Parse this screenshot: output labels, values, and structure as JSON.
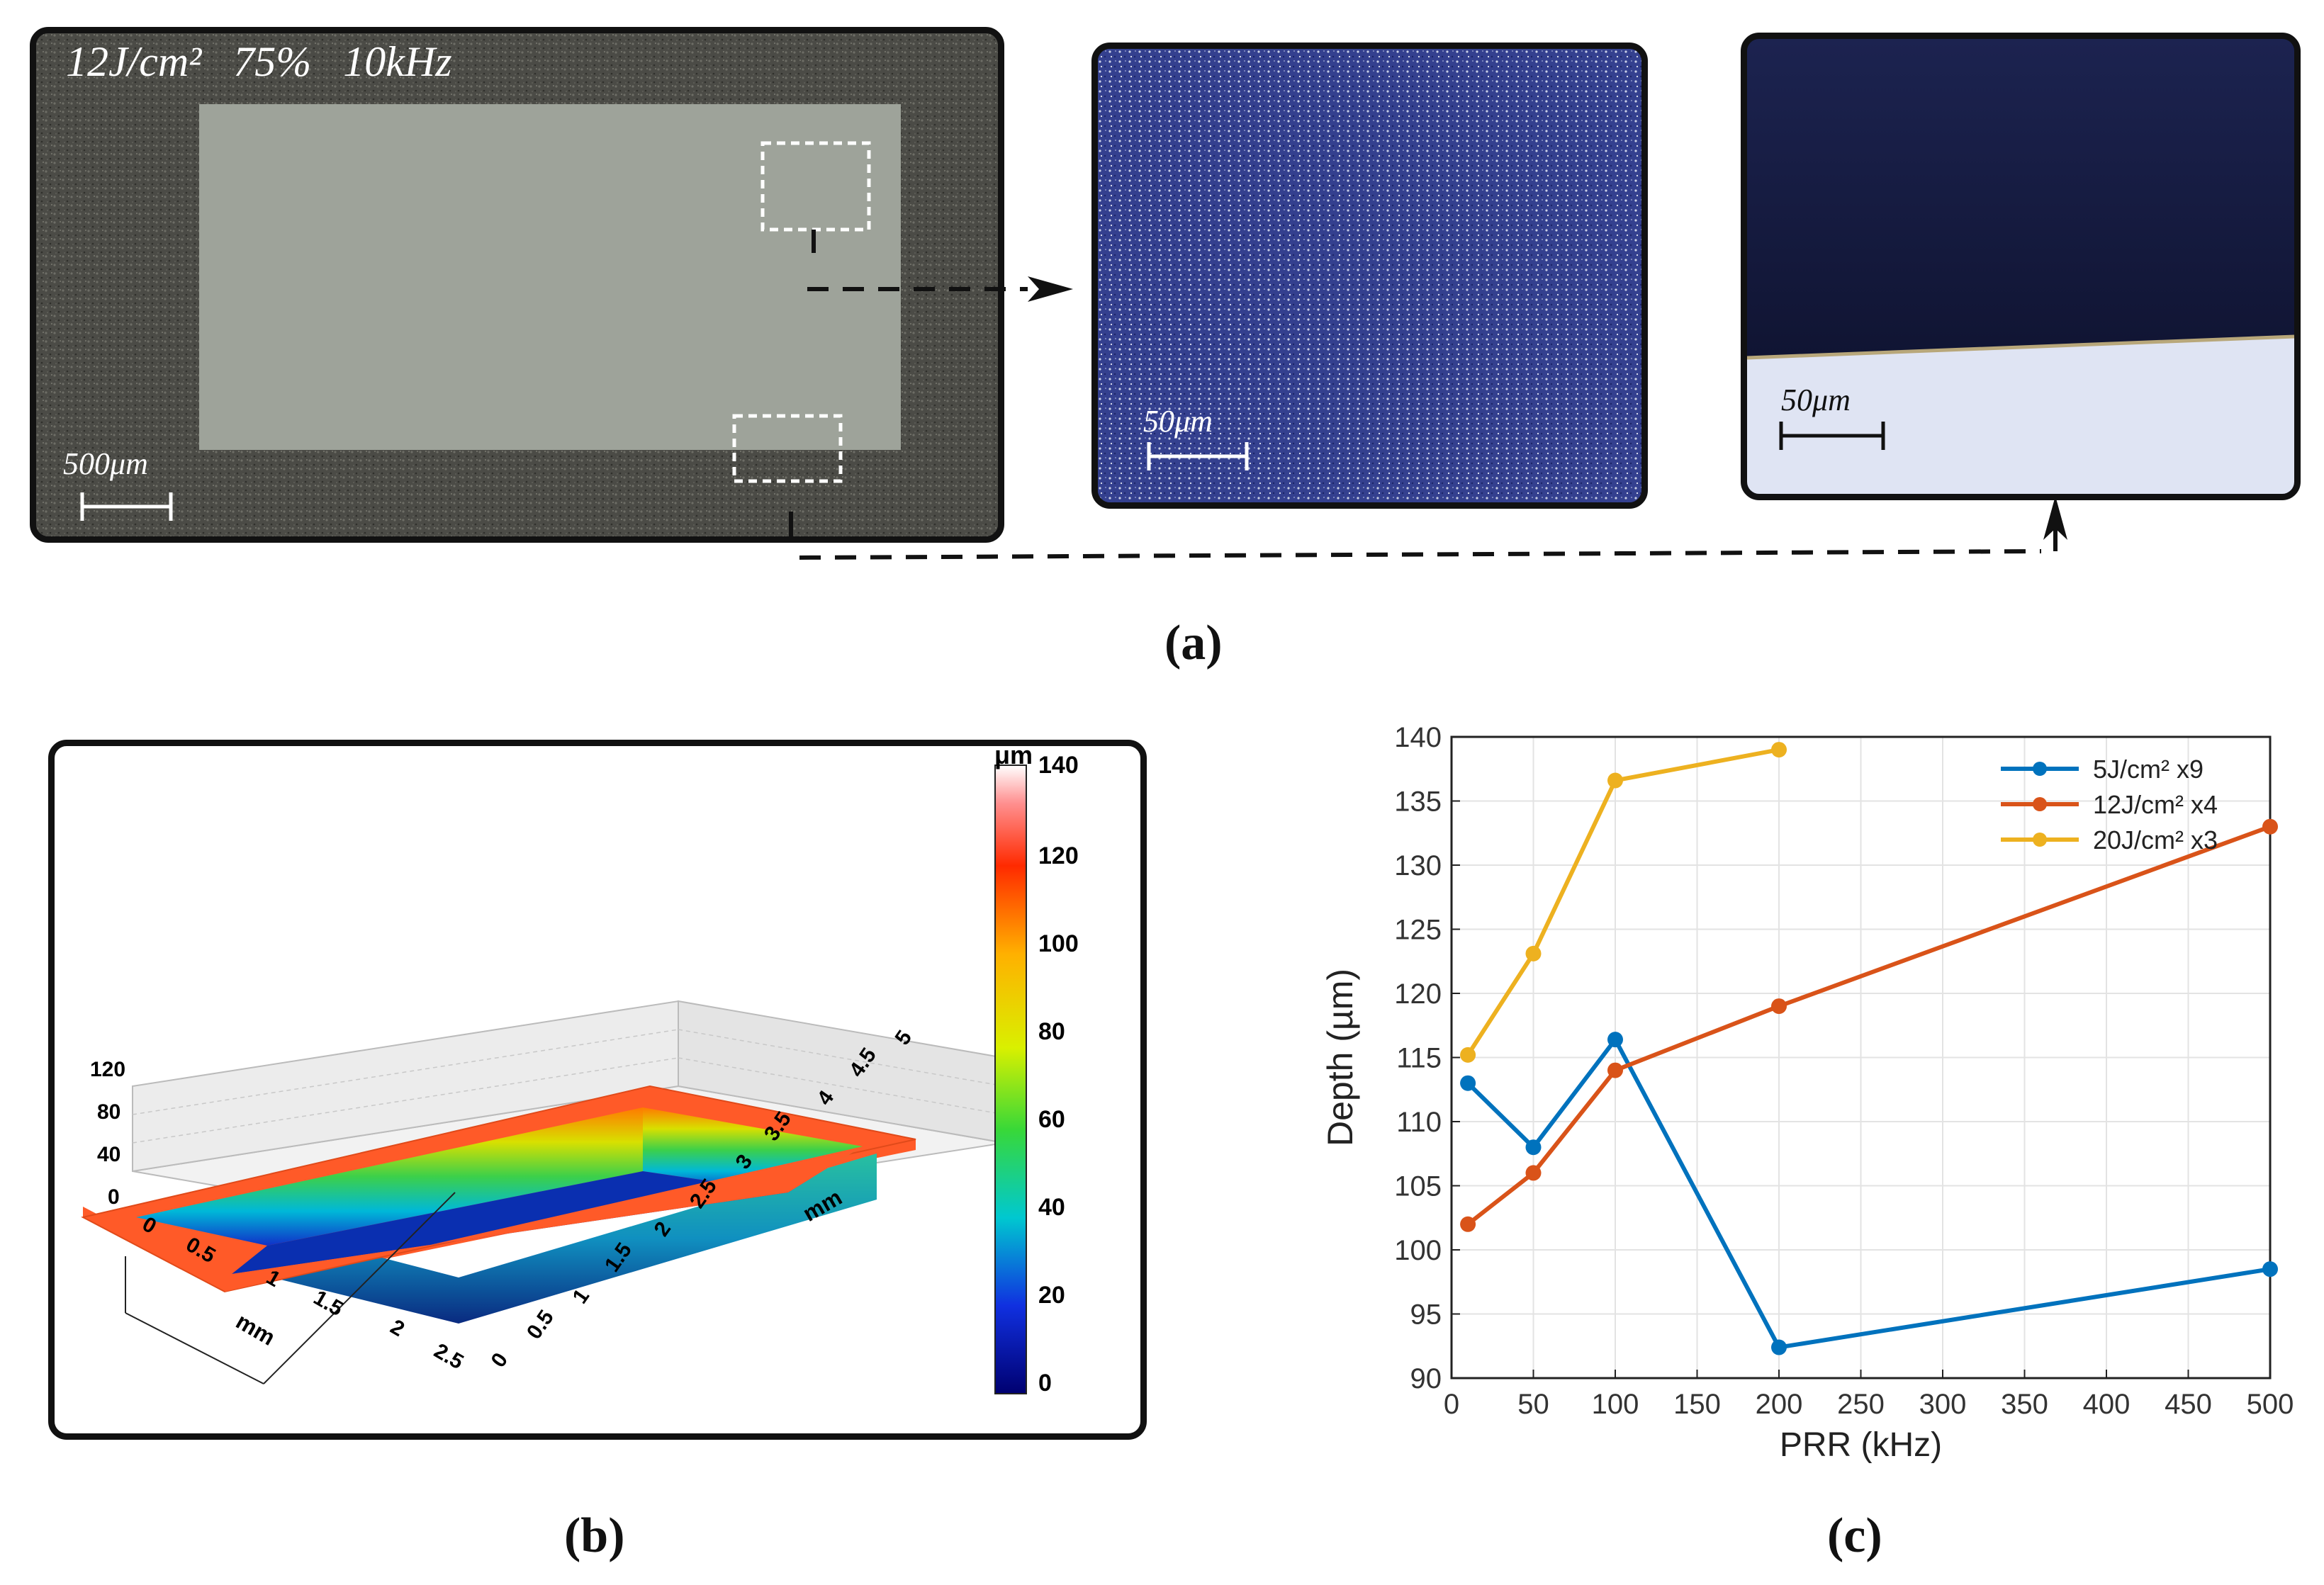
{
  "panel_a": {
    "caption": "(a)",
    "photo": {
      "params_label": "12J/cm²   75%   10kHz",
      "scale_label": "500μm"
    },
    "micro_top": {
      "scale_label": "50μm"
    },
    "micro_edge": {
      "scale_label": "50μm"
    }
  },
  "panel_b": {
    "caption": "(b)",
    "colorbar": {
      "unit": "μm",
      "ticks": [
        "140",
        "120",
        "100",
        "80",
        "60",
        "40",
        "20",
        "0"
      ]
    },
    "z_ticks": [
      "120",
      "80",
      "40",
      "0"
    ],
    "x_axis": {
      "label": "mm",
      "ticks": [
        "0",
        "0.5",
        "1",
        "1.5",
        "2",
        "2.5"
      ]
    },
    "y_axis": {
      "label": "mm",
      "ticks": [
        "0",
        "0.5",
        "1",
        "1.5",
        "2",
        "2.5",
        "3",
        "3.5",
        "4",
        "4.5",
        "5"
      ]
    }
  },
  "panel_c": {
    "caption": "(c)"
  },
  "chart_data": {
    "type": "line",
    "title": "",
    "xlabel": "PRR (kHz)",
    "ylabel": "Depth (µm)",
    "xlim": [
      0,
      500
    ],
    "ylim": [
      90,
      140
    ],
    "xticks": [
      0,
      50,
      100,
      150,
      200,
      250,
      300,
      350,
      400,
      450,
      500
    ],
    "yticks": [
      90,
      95,
      100,
      105,
      110,
      115,
      120,
      125,
      130,
      135,
      140
    ],
    "grid": true,
    "legend_position": "top-right",
    "series": [
      {
        "name": "5J/cm² x9",
        "color": "#0072bd",
        "x": [
          10,
          50,
          100,
          200,
          500
        ],
        "y": [
          113,
          108,
          116.4,
          92.4,
          98.5
        ]
      },
      {
        "name": "12J/cm² x4",
        "color": "#d95319",
        "x": [
          10,
          50,
          100,
          200,
          500
        ],
        "y": [
          102,
          106,
          114,
          119,
          133
        ]
      },
      {
        "name": "20J/cm² x3",
        "color": "#edb120",
        "x": [
          10,
          50,
          100,
          200
        ],
        "y": [
          115.2,
          123.1,
          136.6,
          139
        ]
      }
    ]
  }
}
